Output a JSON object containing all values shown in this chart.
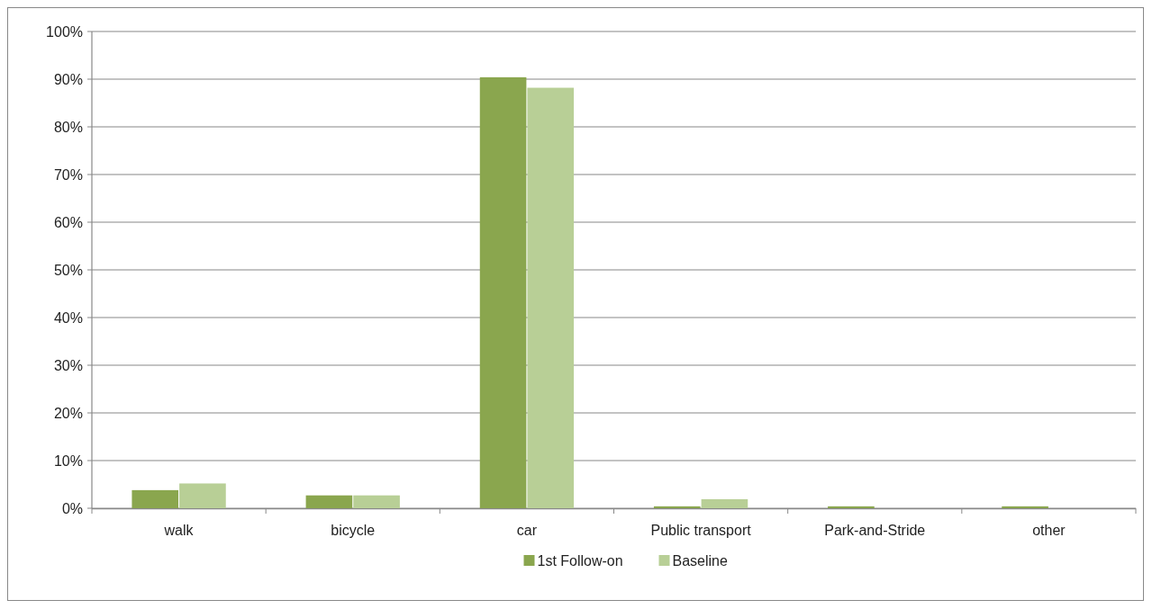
{
  "chart_data": {
    "type": "bar",
    "categories": [
      "walk",
      "bicycle",
      "car",
      "Public transport",
      "Park-and-Stride",
      "other"
    ],
    "series": [
      {
        "name": "1st Follow-on",
        "color": "#8aa64e",
        "values": [
          3.8,
          2.7,
          90.4,
          0.4,
          0.4,
          0.4
        ]
      },
      {
        "name": "Baseline",
        "color": "#b8cf96",
        "values": [
          5.2,
          2.7,
          88.2,
          1.9,
          0,
          0
        ]
      }
    ],
    "ylim": [
      0,
      100
    ],
    "yticks": [
      {
        "value": 0,
        "label": "0%"
      },
      {
        "value": 10,
        "label": "10%"
      },
      {
        "value": 20,
        "label": "20%"
      },
      {
        "value": 30,
        "label": "30%"
      },
      {
        "value": 40,
        "label": "40%"
      },
      {
        "value": 50,
        "label": "50%"
      },
      {
        "value": 60,
        "label": "60%"
      },
      {
        "value": 70,
        "label": "70%"
      },
      {
        "value": 80,
        "label": "80%"
      },
      {
        "value": 90,
        "label": "90%"
      },
      {
        "value": 100,
        "label": "100%"
      }
    ],
    "grid": "y",
    "legend": "bottom"
  }
}
